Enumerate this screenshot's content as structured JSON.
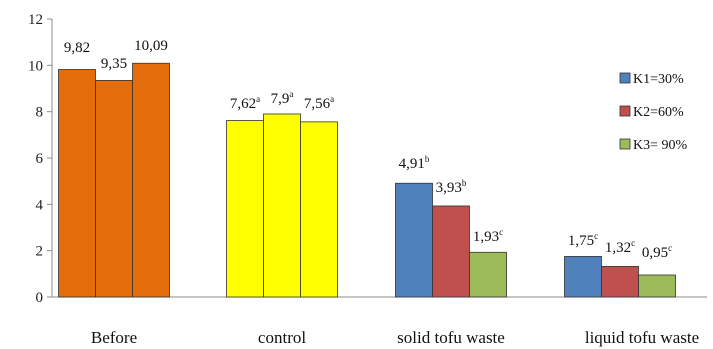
{
  "chart_data": {
    "type": "bar",
    "categories": [
      "Before",
      "control",
      "solid tofu waste",
      "liquid tofu waste"
    ],
    "yticks": [
      "0",
      "2",
      "4",
      "6",
      "8",
      "10",
      "12"
    ],
    "ylim": [
      0,
      12
    ],
    "legend_position": "right",
    "series": [
      {
        "name": "K1=30%",
        "values": [
          9.82,
          7.62,
          4.91,
          1.75
        ]
      },
      {
        "name": "K2=60%",
        "values": [
          9.35,
          7.9,
          3.93,
          1.32
        ]
      },
      {
        "name": "K3= 90%",
        "values": [
          10.09,
          7.56,
          1.93,
          0.95
        ]
      }
    ],
    "data_labels": [
      [
        {
          "text": "9,82",
          "sup": ""
        },
        {
          "text": "9,35",
          "sup": ""
        },
        {
          "text": "10,09",
          "sup": ""
        }
      ],
      [
        {
          "text": "7,62",
          "sup": "a"
        },
        {
          "text": "7,9",
          "sup": "a"
        },
        {
          "text": "7,56",
          "sup": "a"
        }
      ],
      [
        {
          "text": "4,91",
          "sup": "b"
        },
        {
          "text": "3,93",
          "sup": "b"
        },
        {
          "text": "1,93",
          "sup": "c"
        }
      ],
      [
        {
          "text": "1,75",
          "sup": "c"
        },
        {
          "text": "1,32",
          "sup": "c"
        },
        {
          "text": "0,95",
          "sup": "c"
        }
      ]
    ],
    "category_colors": [
      "#E46C0A",
      "#FFFF00",
      null,
      null
    ],
    "series_colors": [
      "#4F81BD",
      "#C0504D",
      "#9BBB59"
    ]
  }
}
